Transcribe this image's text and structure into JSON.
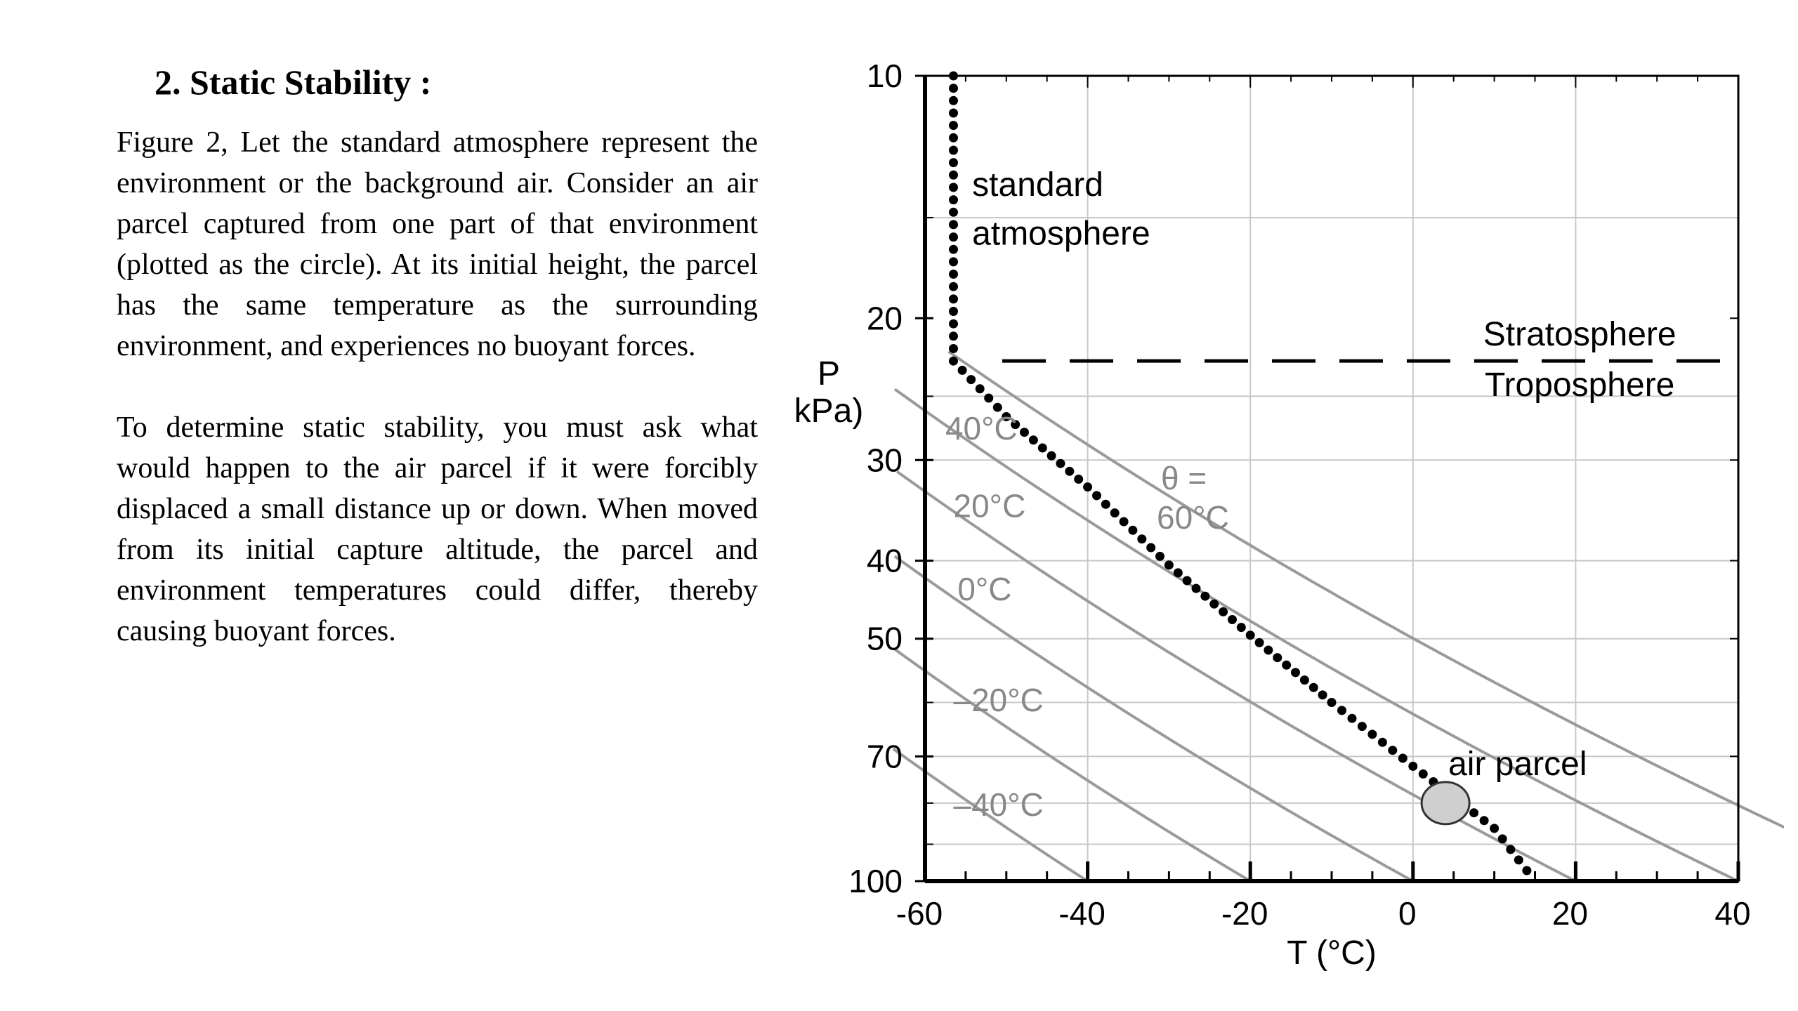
{
  "text": {
    "heading": "2. Static Stability :",
    "paragraph1": "Figure 2, Let the standard atmosphere represent the environment or the background air. Consider an air parcel captured from one part of that environment (plotted as the circle). At its initial height, the parcel has the same temperature as the surrounding environment, and experiences no buoyant forces.",
    "paragraph2": "To determine static stability, you must ask what would happen to the air parcel if it were forcibly displaced a small distance up or down. When moved from its initial capture altitude, the parcel and environment temperatures could differ, thereby causing buoyant forces."
  },
  "chart_data": {
    "type": "line",
    "title": "",
    "xlabel": "T (°C)",
    "ylabel_line1": "P",
    "ylabel_line2": "kPa)",
    "xlim": [
      -60,
      40
    ],
    "ylim": [
      100,
      10
    ],
    "y_scale": "log",
    "grid": true,
    "x_ticks": [
      -60,
      -40,
      -20,
      0,
      20,
      40
    ],
    "x_tick_labels": [
      "-60",
      "-40",
      "-20",
      "0",
      "20",
      "40"
    ],
    "y_ticks": [
      10,
      20,
      30,
      40,
      50,
      70,
      100
    ],
    "y_tick_labels": [
      "10",
      "20",
      "30",
      "40",
      "50",
      "70",
      "100"
    ],
    "colors": {
      "axis": "#000000",
      "grid": "#c8c8c8",
      "adiabat": "#9a9a9a",
      "adiabat_label": "#888888",
      "parcel_fill": "#cfcfcf"
    },
    "standard_atmosphere": {
      "label_line1": "standard",
      "label_line2": "atmosphere",
      "points": [
        {
          "T": -56.5,
          "P": 10
        },
        {
          "T": -56.5,
          "P": 22.6
        },
        {
          "T": -50,
          "P": 26.5
        },
        {
          "T": -40,
          "P": 32.4
        },
        {
          "T": -30,
          "P": 40.5
        },
        {
          "T": -20,
          "P": 49.5
        },
        {
          "T": -10,
          "P": 60.0
        },
        {
          "T": 0,
          "P": 72.0
        },
        {
          "T": 10,
          "P": 86.0
        },
        {
          "T": 15,
          "P": 100
        }
      ]
    },
    "tropopause": {
      "P": 22.6,
      "label_above": "Stratosphere",
      "label_below": "Troposphere"
    },
    "dry_adiabats": [
      {
        "theta": -40,
        "label": "–40°C"
      },
      {
        "theta": -20,
        "label": "–20°C"
      },
      {
        "theta": 0,
        "label": "0°C"
      },
      {
        "theta": 20,
        "label": "20°C"
      },
      {
        "theta": 40,
        "label": "40°C"
      },
      {
        "theta": 60,
        "label": "60°C",
        "prefix": "θ ="
      }
    ],
    "air_parcel": {
      "label": "air parcel",
      "T": 4,
      "P": 80
    }
  }
}
